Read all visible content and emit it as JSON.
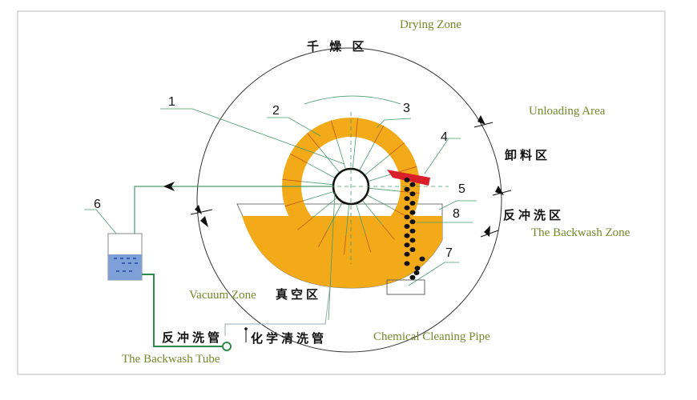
{
  "labels": {
    "drying_zone_en": "Drying Zone",
    "drying_zone_cn": "千 燥 区",
    "unloading_en": "Unloading Area",
    "unloading_cn": "卸料区",
    "backwash_zone_cn": "反冲洗区",
    "backwash_zone_en": "The Backwash Zone",
    "vacuum_zone_en": "Vacuum Zone",
    "vacuum_zone_cn": "真空区",
    "backwash_tube_cn": "反冲洗管",
    "backwash_tube_en": "The Backwash Tube",
    "chem_pipe_cn": "化学清洗管",
    "chem_pipe_en": "Chemical Cleaning Pipe"
  },
  "callouts": [
    "1",
    "2",
    "3",
    "4",
    "5",
    "6",
    "7",
    "8"
  ],
  "colors": {
    "drum": "#f2aa18",
    "scraper": "#d81f2a",
    "pipe": "#4a9a6a",
    "liquid": "#7f9fd8",
    "label_en": "#6f8a2a"
  }
}
